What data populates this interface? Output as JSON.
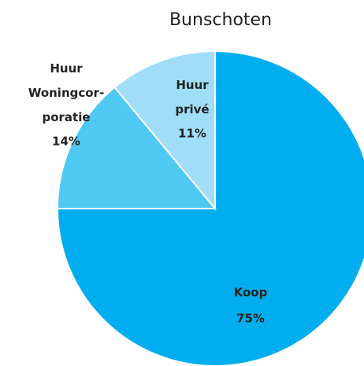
{
  "chart_data": {
    "type": "pie",
    "title": "Bunschoten",
    "categories": [
      "Koop",
      "Huur\nWoningcor-\nporatie",
      "Huur\nprivé"
    ],
    "values": [
      75,
      14,
      11
    ],
    "value_labels": [
      "75%",
      "14%",
      "11%"
    ],
    "colors": [
      "#00aeef",
      "#4fc8f4",
      "#a0def8"
    ]
  }
}
